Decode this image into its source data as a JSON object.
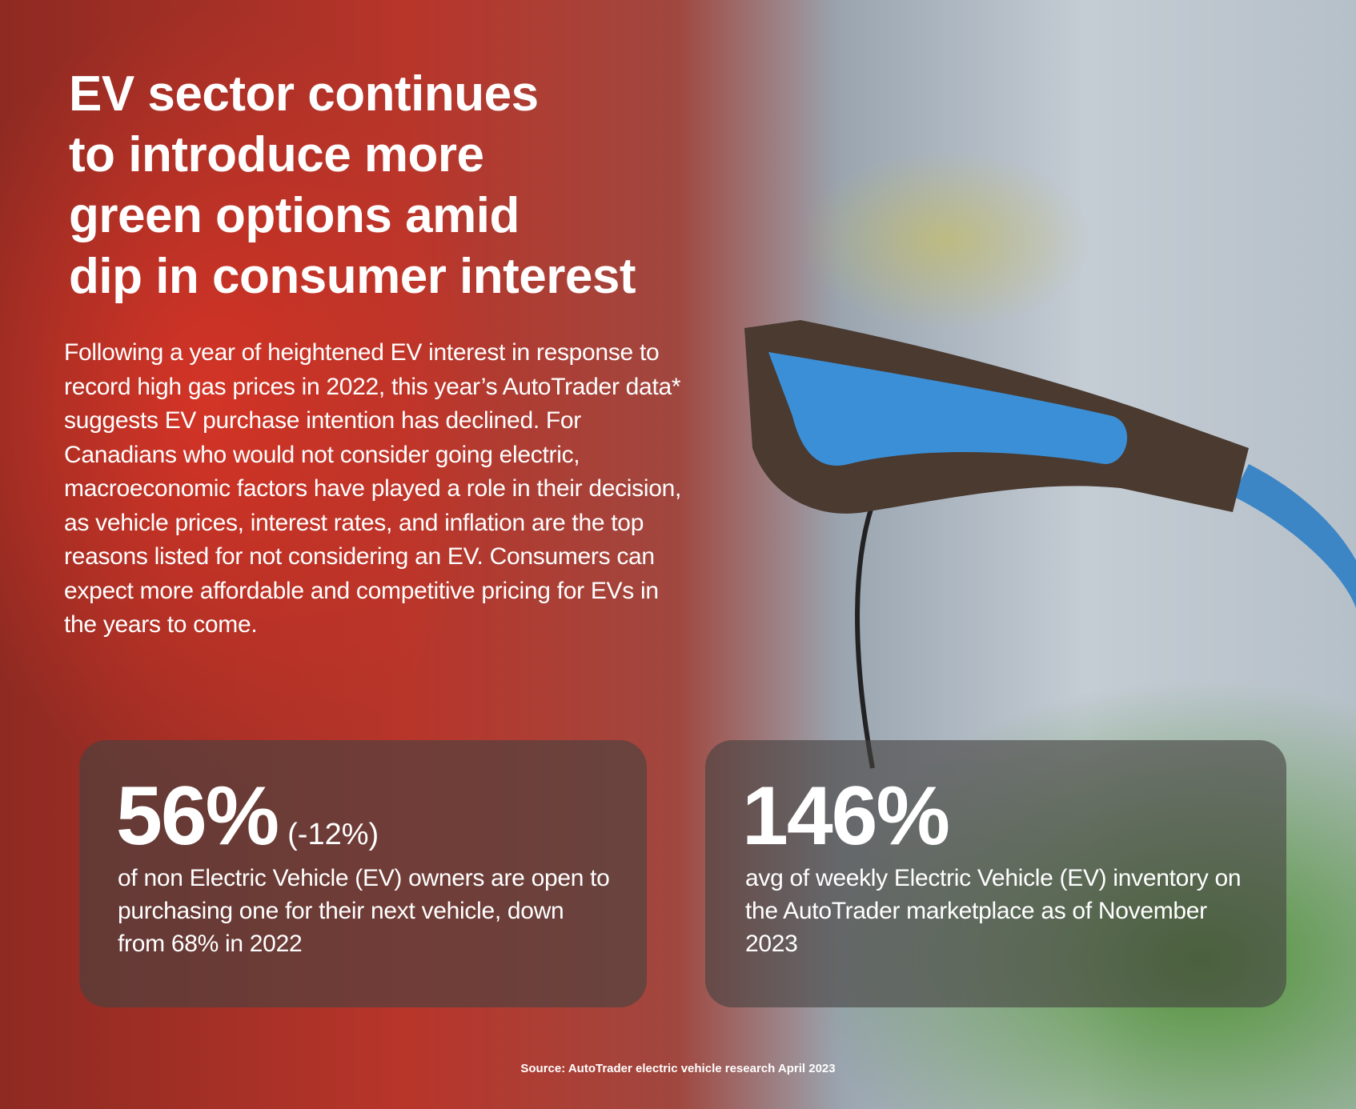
{
  "header": {
    "title": [
      "EV sector continues",
      "to introduce more",
      "green options amid",
      "dip in consumer interest"
    ],
    "body": "Following a year of heightened EV interest in response to record high gas prices in 2022, this year’s AutoTrader data* suggests EV purchase intention has declined. For Canadians who would not consider going electric, macroeconomic factors have played a role in their decision, as vehicle prices, interest rates, and inflation are the top reasons listed for not considering an EV. Consumers can expect more affordable and competitive pricing for EVs in the years to come."
  },
  "stats": [
    {
      "value": "56%",
      "change": "(-12%)",
      "description": "of non Electric Vehicle (EV) owners are open to purchasing one for their next vehicle, down from 68% in 2022"
    },
    {
      "value": "146%",
      "description": "avg of weekly Electric Vehicle (EV) inventory on the AutoTrader marketplace as of November 2023"
    }
  ],
  "source": "Source: AutoTrader electric vehicle research April 2023"
}
